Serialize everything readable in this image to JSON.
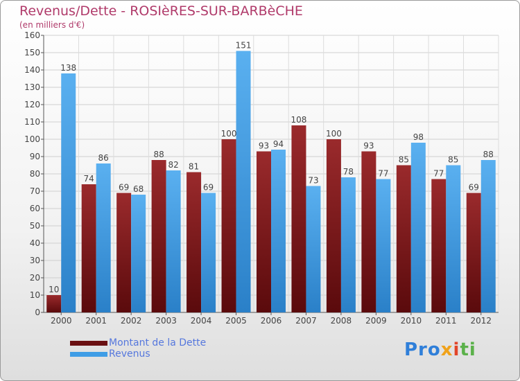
{
  "chart_data": {
    "type": "bar",
    "title": "Revenus/Dette - ROSIèRES-SUR-BARBèCHE",
    "subtitle": "(en milliers d'€)",
    "categories": [
      "2000",
      "2001",
      "2002",
      "2003",
      "2004",
      "2005",
      "2006",
      "2007",
      "2008",
      "2009",
      "2010",
      "2011",
      "2012"
    ],
    "series": [
      {
        "name": "Montant de la Dette",
        "color": "#7a1416",
        "values": [
          10,
          74,
          69,
          88,
          81,
          100,
          93,
          108,
          100,
          93,
          85,
          77,
          69
        ]
      },
      {
        "name": "Revenus",
        "color": "#3f9de6",
        "values": [
          138,
          86,
          68,
          82,
          69,
          151,
          94,
          73,
          78,
          77,
          98,
          85,
          88
        ]
      }
    ],
    "ylim": [
      0,
      160
    ],
    "yticks": [
      0,
      10,
      20,
      30,
      40,
      50,
      60,
      70,
      80,
      90,
      100,
      110,
      120,
      130,
      140,
      150,
      160
    ],
    "grid": true,
    "legend_position": "bottom-left"
  },
  "legend": {
    "items": [
      {
        "label": "Montant de la Dette",
        "color": "#6a1012"
      },
      {
        "label": "Revenus",
        "color": "#3f9de6"
      }
    ]
  },
  "logo": {
    "p1": "Pro",
    "p2": "x",
    "p3": "i",
    "p4": "ti"
  }
}
